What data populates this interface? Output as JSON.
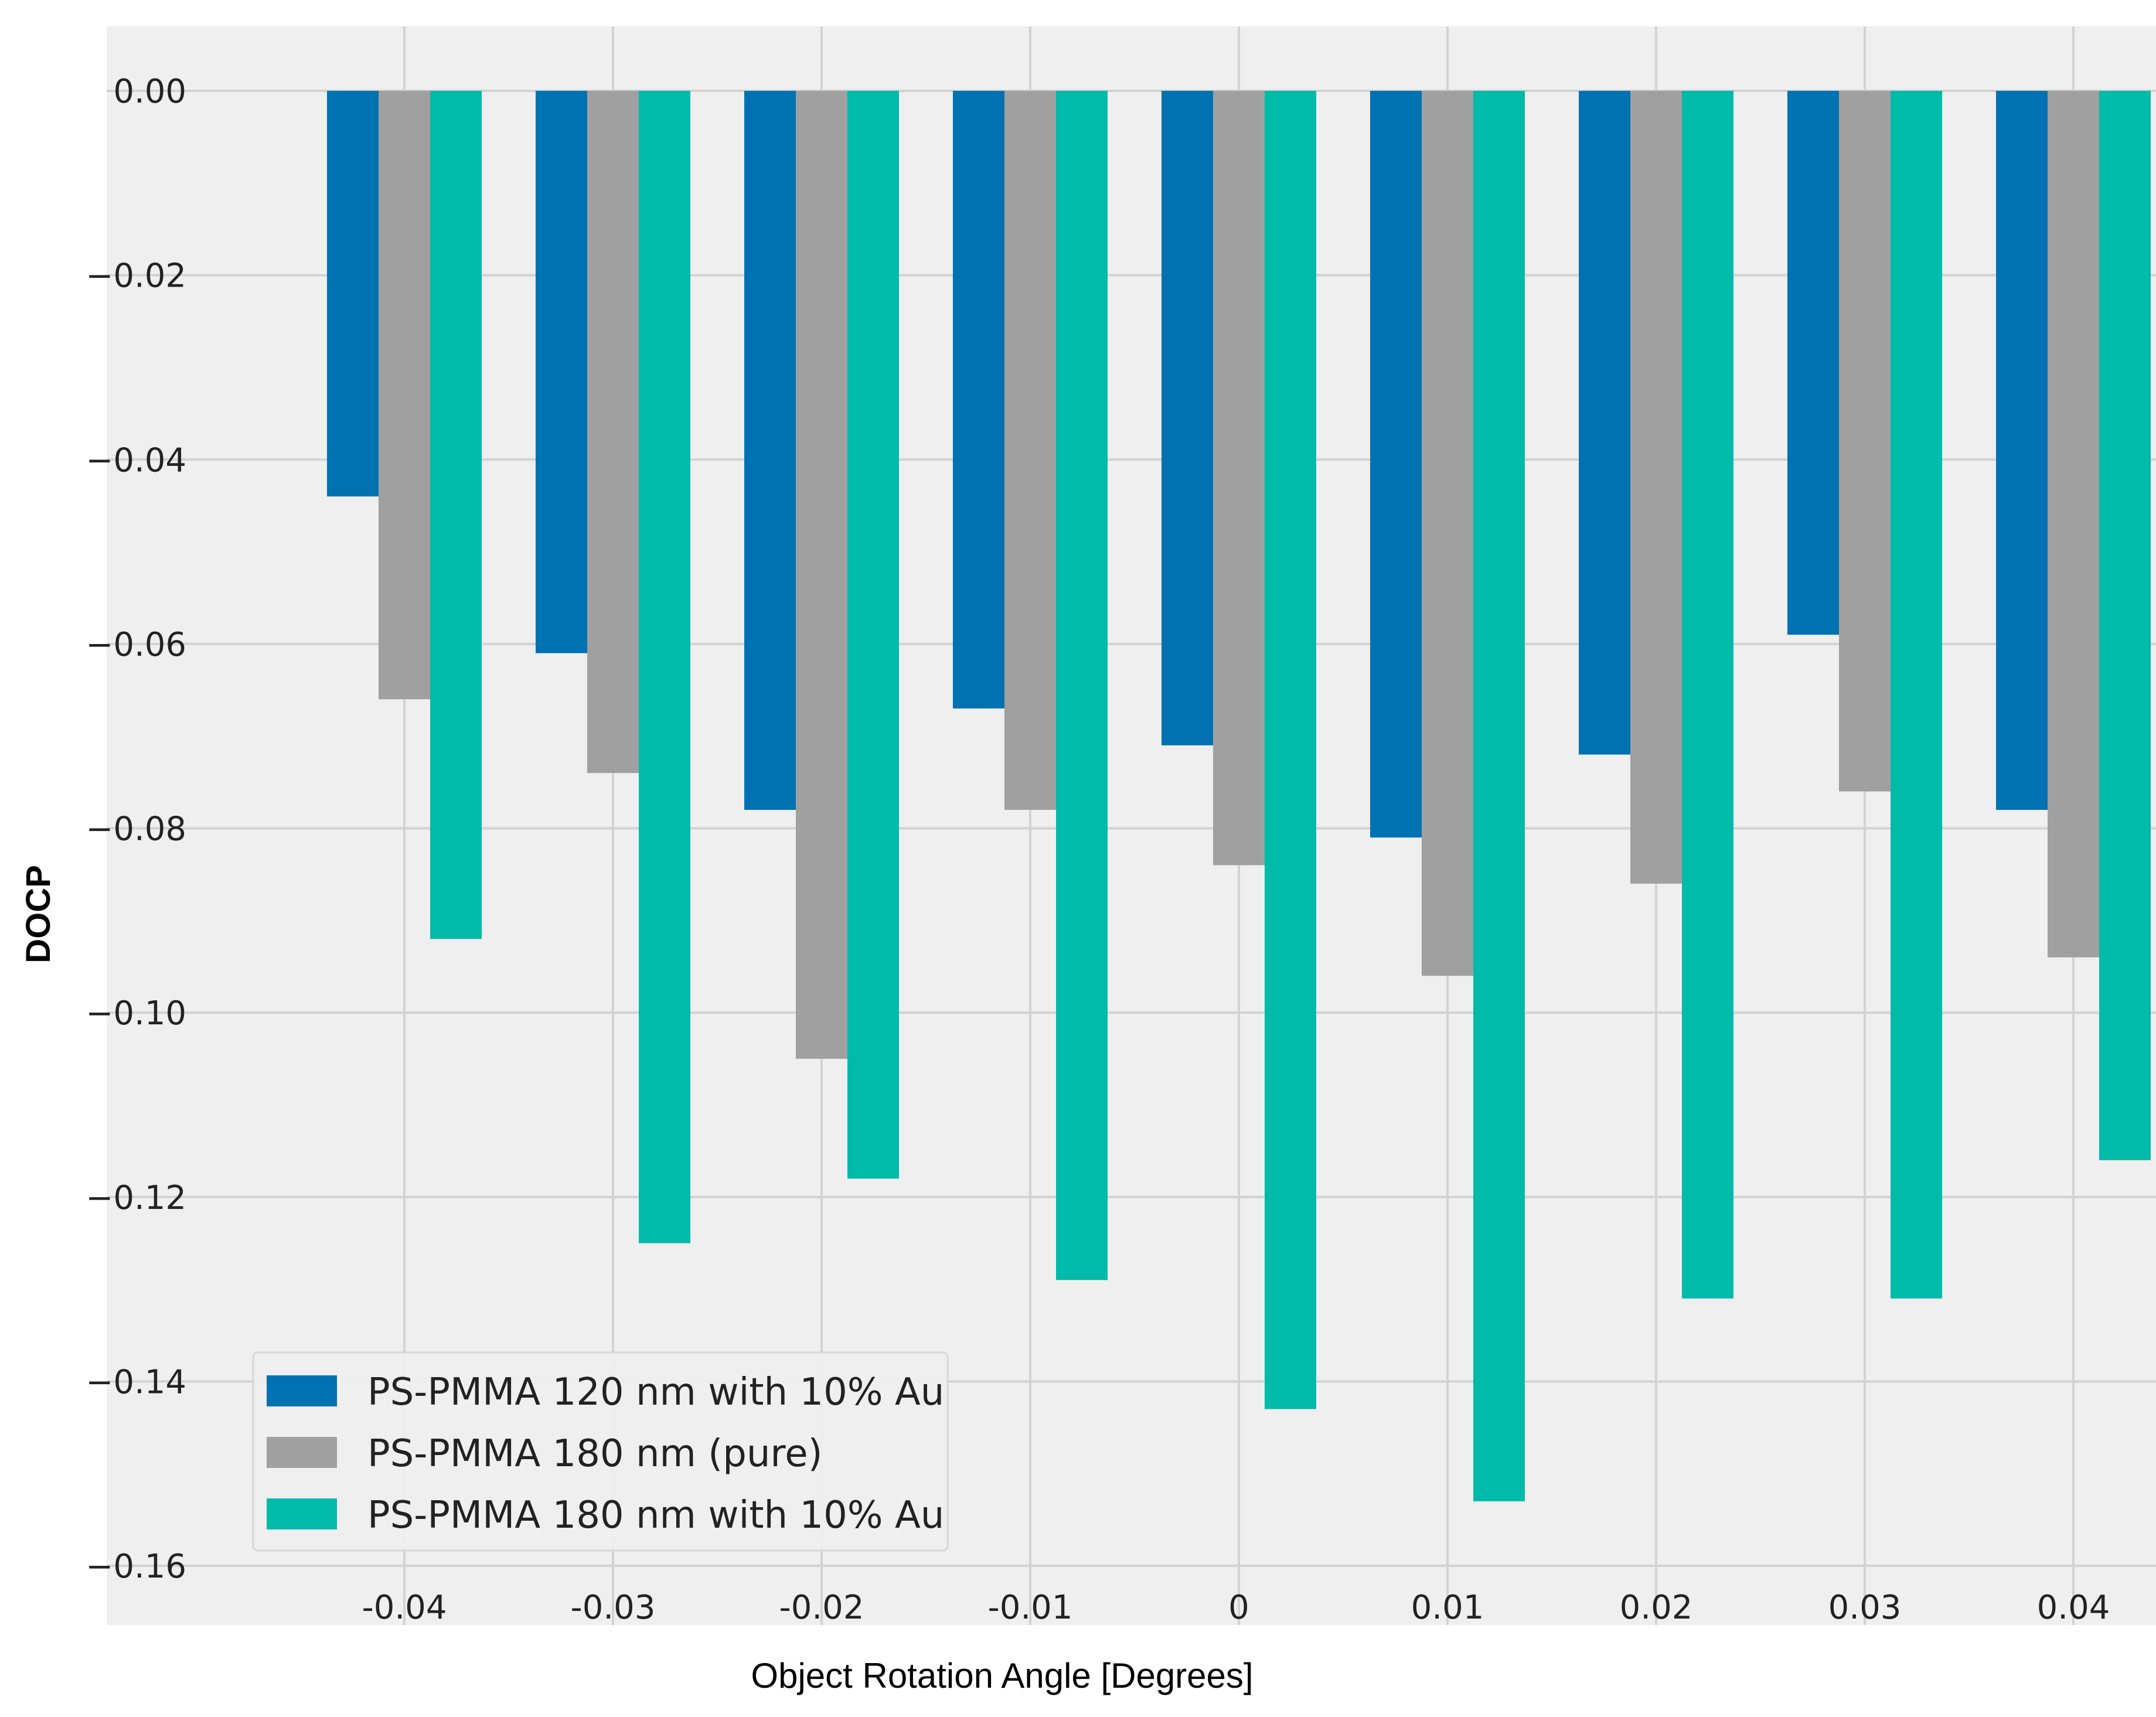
{
  "chart_data": {
    "type": "bar",
    "title": "",
    "xlabel": "Object Rotation Angle [Degrees]",
    "ylabel": "DOCP",
    "ylim": [
      -0.16,
      0.0
    ],
    "yticks": [
      "0.00",
      "−0.02",
      "−0.04",
      "−0.06",
      "−0.08",
      "−0.10",
      "−0.12",
      "−0.14",
      "−0.16"
    ],
    "ytick_values": [
      0.0,
      -0.02,
      -0.04,
      -0.06,
      -0.08,
      -0.1,
      -0.12,
      -0.14,
      -0.16
    ],
    "categories": [
      "-0.04",
      "-0.03",
      "-0.02",
      "-0.01",
      "0",
      "0.01",
      "0.02",
      "0.03",
      "0.04"
    ],
    "grid": true,
    "legend_position": "lower-left",
    "series": [
      {
        "name": "PS-PMMA 120 nm with 10% Au",
        "color": "#0072B2",
        "values": [
          -0.044,
          -0.061,
          -0.078,
          -0.067,
          -0.071,
          -0.081,
          -0.072,
          -0.059,
          -0.078
        ]
      },
      {
        "name": "PS-PMMA 180 nm (pure)",
        "color": "#A0A0A0",
        "values": [
          -0.066,
          -0.074,
          -0.105,
          -0.078,
          -0.084,
          -0.096,
          -0.086,
          -0.076,
          -0.094
        ]
      },
      {
        "name": "PS-PMMA 180 nm with 10% Au",
        "color": "#00BAAA",
        "values": [
          -0.092,
          -0.125,
          -0.118,
          -0.129,
          -0.143,
          -0.153,
          -0.131,
          -0.131,
          -0.116
        ]
      }
    ]
  },
  "colors": {
    "plot_background": "#EFEFEF",
    "grid": "#D2D2D2"
  }
}
